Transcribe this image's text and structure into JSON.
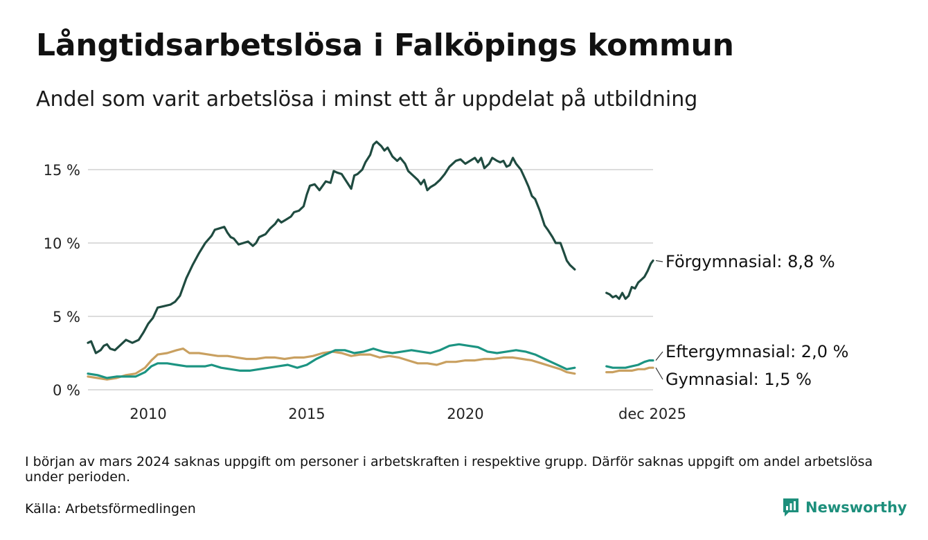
{
  "title": "Långtidsarbetslösa i Falköpings kommun",
  "subtitle": "Andel som varit arbetslösa i minst ett år uppdelat på utbildning",
  "note": "I början av mars 2024 saknas uppgift om personer i arbetskraften i respektive grupp. Därför saknas uppgift om andel arbetslösa under perioden.",
  "source": "Källa: Arbetsförmedlingen",
  "brand": {
    "name": "Newsworthy",
    "icon": "newsworthy-logo-icon",
    "color": "#1d8f7c"
  },
  "chart_data": {
    "type": "line",
    "title": "Långtidsarbetslösa i Falköpings kommun",
    "xlabel": "",
    "ylabel": "",
    "ylim": [
      0,
      17
    ],
    "xlim": [
      2008.1,
      2025.92
    ],
    "y_ticks": [
      0,
      5,
      10,
      15
    ],
    "y_tick_labels": [
      "0 %",
      "5 %",
      "10 %",
      "15 %"
    ],
    "x_ticks": [
      2010,
      2015,
      2020,
      2025.92
    ],
    "x_tick_labels": [
      "2010",
      "2015",
      "2020",
      "dec 2025"
    ],
    "grid": true,
    "gap_note": "Data missing between 2023.9 and 2024.4",
    "series": [
      {
        "name": "Förgymnasial",
        "label": "Förgymnasial: 8,8 %",
        "color": "#1f4b40",
        "segments": [
          [
            [
              2008.1,
              3.2
            ],
            [
              2008.2,
              3.3
            ],
            [
              2008.35,
              2.5
            ],
            [
              2008.5,
              2.7
            ],
            [
              2008.6,
              3.0
            ],
            [
              2008.7,
              3.1
            ],
            [
              2008.8,
              2.8
            ],
            [
              2008.95,
              2.7
            ],
            [
              2009.1,
              3.0
            ],
            [
              2009.3,
              3.4
            ],
            [
              2009.5,
              3.2
            ],
            [
              2009.7,
              3.4
            ],
            [
              2009.85,
              3.9
            ],
            [
              2010.0,
              4.5
            ],
            [
              2010.15,
              4.9
            ],
            [
              2010.3,
              5.6
            ],
            [
              2010.5,
              5.7
            ],
            [
              2010.7,
              5.8
            ],
            [
              2010.85,
              6.0
            ],
            [
              2011.0,
              6.4
            ],
            [
              2011.2,
              7.6
            ],
            [
              2011.4,
              8.5
            ],
            [
              2011.6,
              9.3
            ],
            [
              2011.8,
              10.0
            ],
            [
              2012.0,
              10.5
            ],
            [
              2012.1,
              10.9
            ],
            [
              2012.25,
              11.0
            ],
            [
              2012.4,
              11.1
            ],
            [
              2012.5,
              10.7
            ],
            [
              2012.6,
              10.4
            ],
            [
              2012.7,
              10.3
            ],
            [
              2012.85,
              9.9
            ],
            [
              2013.0,
              10.0
            ],
            [
              2013.15,
              10.1
            ],
            [
              2013.3,
              9.8
            ],
            [
              2013.4,
              10.0
            ],
            [
              2013.5,
              10.4
            ],
            [
              2013.7,
              10.6
            ],
            [
              2013.85,
              11.0
            ],
            [
              2014.0,
              11.3
            ],
            [
              2014.1,
              11.6
            ],
            [
              2014.2,
              11.4
            ],
            [
              2014.35,
              11.6
            ],
            [
              2014.5,
              11.8
            ],
            [
              2014.6,
              12.1
            ],
            [
              2014.75,
              12.2
            ],
            [
              2014.9,
              12.5
            ],
            [
              2015.0,
              13.3
            ],
            [
              2015.1,
              13.9
            ],
            [
              2015.25,
              14.0
            ],
            [
              2015.4,
              13.6
            ],
            [
              2015.5,
              13.9
            ],
            [
              2015.6,
              14.2
            ],
            [
              2015.75,
              14.1
            ],
            [
              2015.85,
              14.9
            ],
            [
              2015.95,
              14.8
            ],
            [
              2016.1,
              14.7
            ],
            [
              2016.25,
              14.2
            ],
            [
              2016.4,
              13.7
            ],
            [
              2016.5,
              14.6
            ],
            [
              2016.6,
              14.7
            ],
            [
              2016.75,
              15.0
            ],
            [
              2016.85,
              15.5
            ],
            [
              2017.0,
              16.0
            ],
            [
              2017.1,
              16.7
            ],
            [
              2017.2,
              16.9
            ],
            [
              2017.35,
              16.6
            ],
            [
              2017.45,
              16.3
            ],
            [
              2017.55,
              16.5
            ],
            [
              2017.7,
              15.9
            ],
            [
              2017.85,
              15.6
            ],
            [
              2017.95,
              15.8
            ],
            [
              2018.1,
              15.4
            ],
            [
              2018.2,
              14.9
            ],
            [
              2018.35,
              14.6
            ],
            [
              2018.5,
              14.3
            ],
            [
              2018.6,
              14.0
            ],
            [
              2018.7,
              14.3
            ],
            [
              2018.8,
              13.6
            ],
            [
              2018.9,
              13.8
            ],
            [
              2019.05,
              14.0
            ],
            [
              2019.2,
              14.3
            ],
            [
              2019.35,
              14.7
            ],
            [
              2019.5,
              15.2
            ],
            [
              2019.7,
              15.6
            ],
            [
              2019.85,
              15.7
            ],
            [
              2020.0,
              15.4
            ],
            [
              2020.15,
              15.6
            ],
            [
              2020.3,
              15.8
            ],
            [
              2020.4,
              15.5
            ],
            [
              2020.5,
              15.8
            ],
            [
              2020.6,
              15.1
            ],
            [
              2020.75,
              15.4
            ],
            [
              2020.85,
              15.8
            ],
            [
              2021.0,
              15.6
            ],
            [
              2021.1,
              15.5
            ],
            [
              2021.2,
              15.6
            ],
            [
              2021.3,
              15.2
            ],
            [
              2021.4,
              15.3
            ],
            [
              2021.5,
              15.8
            ],
            [
              2021.6,
              15.4
            ],
            [
              2021.75,
              15.0
            ],
            [
              2021.9,
              14.3
            ],
            [
              2022.0,
              13.8
            ],
            [
              2022.1,
              13.2
            ],
            [
              2022.2,
              13.0
            ],
            [
              2022.35,
              12.2
            ],
            [
              2022.5,
              11.2
            ],
            [
              2022.6,
              10.9
            ],
            [
              2022.75,
              10.4
            ],
            [
              2022.85,
              10.0
            ],
            [
              2023.0,
              10.0
            ],
            [
              2023.1,
              9.4
            ],
            [
              2023.2,
              8.8
            ],
            [
              2023.3,
              8.5
            ],
            [
              2023.45,
              8.2
            ]
          ],
          [
            [
              2024.45,
              6.6
            ],
            [
              2024.55,
              6.5
            ],
            [
              2024.65,
              6.3
            ],
            [
              2024.75,
              6.4
            ],
            [
              2024.85,
              6.2
            ],
            [
              2024.95,
              6.6
            ],
            [
              2025.05,
              6.2
            ],
            [
              2025.15,
              6.4
            ],
            [
              2025.25,
              7.0
            ],
            [
              2025.35,
              6.9
            ],
            [
              2025.45,
              7.3
            ],
            [
              2025.55,
              7.5
            ],
            [
              2025.65,
              7.7
            ],
            [
              2025.75,
              8.1
            ],
            [
              2025.85,
              8.6
            ],
            [
              2025.92,
              8.8
            ]
          ]
        ]
      },
      {
        "name": "Eftergymnasial",
        "label": "Eftergymnasial: 2,0 %",
        "color": "#1c9482",
        "segments": [
          [
            [
              2008.1,
              1.1
            ],
            [
              2008.4,
              1.0
            ],
            [
              2008.7,
              0.8
            ],
            [
              2009.0,
              0.9
            ],
            [
              2009.3,
              0.9
            ],
            [
              2009.6,
              0.9
            ],
            [
              2009.9,
              1.2
            ],
            [
              2010.1,
              1.6
            ],
            [
              2010.3,
              1.8
            ],
            [
              2010.6,
              1.8
            ],
            [
              2010.9,
              1.7
            ],
            [
              2011.2,
              1.6
            ],
            [
              2011.5,
              1.6
            ],
            [
              2011.8,
              1.6
            ],
            [
              2012.0,
              1.7
            ],
            [
              2012.3,
              1.5
            ],
            [
              2012.6,
              1.4
            ],
            [
              2012.9,
              1.3
            ],
            [
              2013.2,
              1.3
            ],
            [
              2013.5,
              1.4
            ],
            [
              2013.8,
              1.5
            ],
            [
              2014.1,
              1.6
            ],
            [
              2014.4,
              1.7
            ],
            [
              2014.7,
              1.5
            ],
            [
              2015.0,
              1.7
            ],
            [
              2015.3,
              2.1
            ],
            [
              2015.6,
              2.4
            ],
            [
              2015.9,
              2.7
            ],
            [
              2016.2,
              2.7
            ],
            [
              2016.5,
              2.5
            ],
            [
              2016.8,
              2.6
            ],
            [
              2017.1,
              2.8
            ],
            [
              2017.4,
              2.6
            ],
            [
              2017.7,
              2.5
            ],
            [
              2018.0,
              2.6
            ],
            [
              2018.3,
              2.7
            ],
            [
              2018.6,
              2.6
            ],
            [
              2018.9,
              2.5
            ],
            [
              2019.2,
              2.7
            ],
            [
              2019.5,
              3.0
            ],
            [
              2019.8,
              3.1
            ],
            [
              2020.1,
              3.0
            ],
            [
              2020.4,
              2.9
            ],
            [
              2020.7,
              2.6
            ],
            [
              2021.0,
              2.5
            ],
            [
              2021.3,
              2.6
            ],
            [
              2021.6,
              2.7
            ],
            [
              2021.9,
              2.6
            ],
            [
              2022.2,
              2.4
            ],
            [
              2022.5,
              2.1
            ],
            [
              2022.8,
              1.8
            ],
            [
              2023.0,
              1.6
            ],
            [
              2023.2,
              1.4
            ],
            [
              2023.45,
              1.5
            ]
          ],
          [
            [
              2024.45,
              1.6
            ],
            [
              2024.65,
              1.5
            ],
            [
              2024.85,
              1.5
            ],
            [
              2025.05,
              1.5
            ],
            [
              2025.25,
              1.6
            ],
            [
              2025.45,
              1.7
            ],
            [
              2025.65,
              1.9
            ],
            [
              2025.8,
              2.0
            ],
            [
              2025.92,
              2.0
            ]
          ]
        ]
      },
      {
        "name": "Gymnasial",
        "label": "Gymnasial: 1,5 %",
        "color": "#c9a060",
        "segments": [
          [
            [
              2008.1,
              0.9
            ],
            [
              2008.4,
              0.8
            ],
            [
              2008.7,
              0.7
            ],
            [
              2009.0,
              0.8
            ],
            [
              2009.3,
              1.0
            ],
            [
              2009.6,
              1.1
            ],
            [
              2009.9,
              1.5
            ],
            [
              2010.1,
              2.0
            ],
            [
              2010.3,
              2.4
            ],
            [
              2010.6,
              2.5
            ],
            [
              2010.9,
              2.7
            ],
            [
              2011.1,
              2.8
            ],
            [
              2011.3,
              2.5
            ],
            [
              2011.6,
              2.5
            ],
            [
              2011.9,
              2.4
            ],
            [
              2012.2,
              2.3
            ],
            [
              2012.5,
              2.3
            ],
            [
              2012.8,
              2.2
            ],
            [
              2013.1,
              2.1
            ],
            [
              2013.4,
              2.1
            ],
            [
              2013.7,
              2.2
            ],
            [
              2014.0,
              2.2
            ],
            [
              2014.3,
              2.1
            ],
            [
              2014.6,
              2.2
            ],
            [
              2014.9,
              2.2
            ],
            [
              2015.2,
              2.3
            ],
            [
              2015.5,
              2.5
            ],
            [
              2015.8,
              2.6
            ],
            [
              2016.1,
              2.5
            ],
            [
              2016.4,
              2.3
            ],
            [
              2016.7,
              2.4
            ],
            [
              2017.0,
              2.4
            ],
            [
              2017.3,
              2.2
            ],
            [
              2017.6,
              2.3
            ],
            [
              2017.9,
              2.2
            ],
            [
              2018.2,
              2.0
            ],
            [
              2018.5,
              1.8
            ],
            [
              2018.8,
              1.8
            ],
            [
              2019.1,
              1.7
            ],
            [
              2019.4,
              1.9
            ],
            [
              2019.7,
              1.9
            ],
            [
              2020.0,
              2.0
            ],
            [
              2020.3,
              2.0
            ],
            [
              2020.6,
              2.1
            ],
            [
              2020.9,
              2.1
            ],
            [
              2021.2,
              2.2
            ],
            [
              2021.5,
              2.2
            ],
            [
              2021.8,
              2.1
            ],
            [
              2022.1,
              2.0
            ],
            [
              2022.4,
              1.8
            ],
            [
              2022.7,
              1.6
            ],
            [
              2023.0,
              1.4
            ],
            [
              2023.2,
              1.2
            ],
            [
              2023.45,
              1.1
            ]
          ],
          [
            [
              2024.45,
              1.2
            ],
            [
              2024.65,
              1.2
            ],
            [
              2024.85,
              1.3
            ],
            [
              2025.05,
              1.3
            ],
            [
              2025.25,
              1.3
            ],
            [
              2025.45,
              1.4
            ],
            [
              2025.65,
              1.4
            ],
            [
              2025.8,
              1.5
            ],
            [
              2025.92,
              1.5
            ]
          ]
        ]
      }
    ]
  }
}
